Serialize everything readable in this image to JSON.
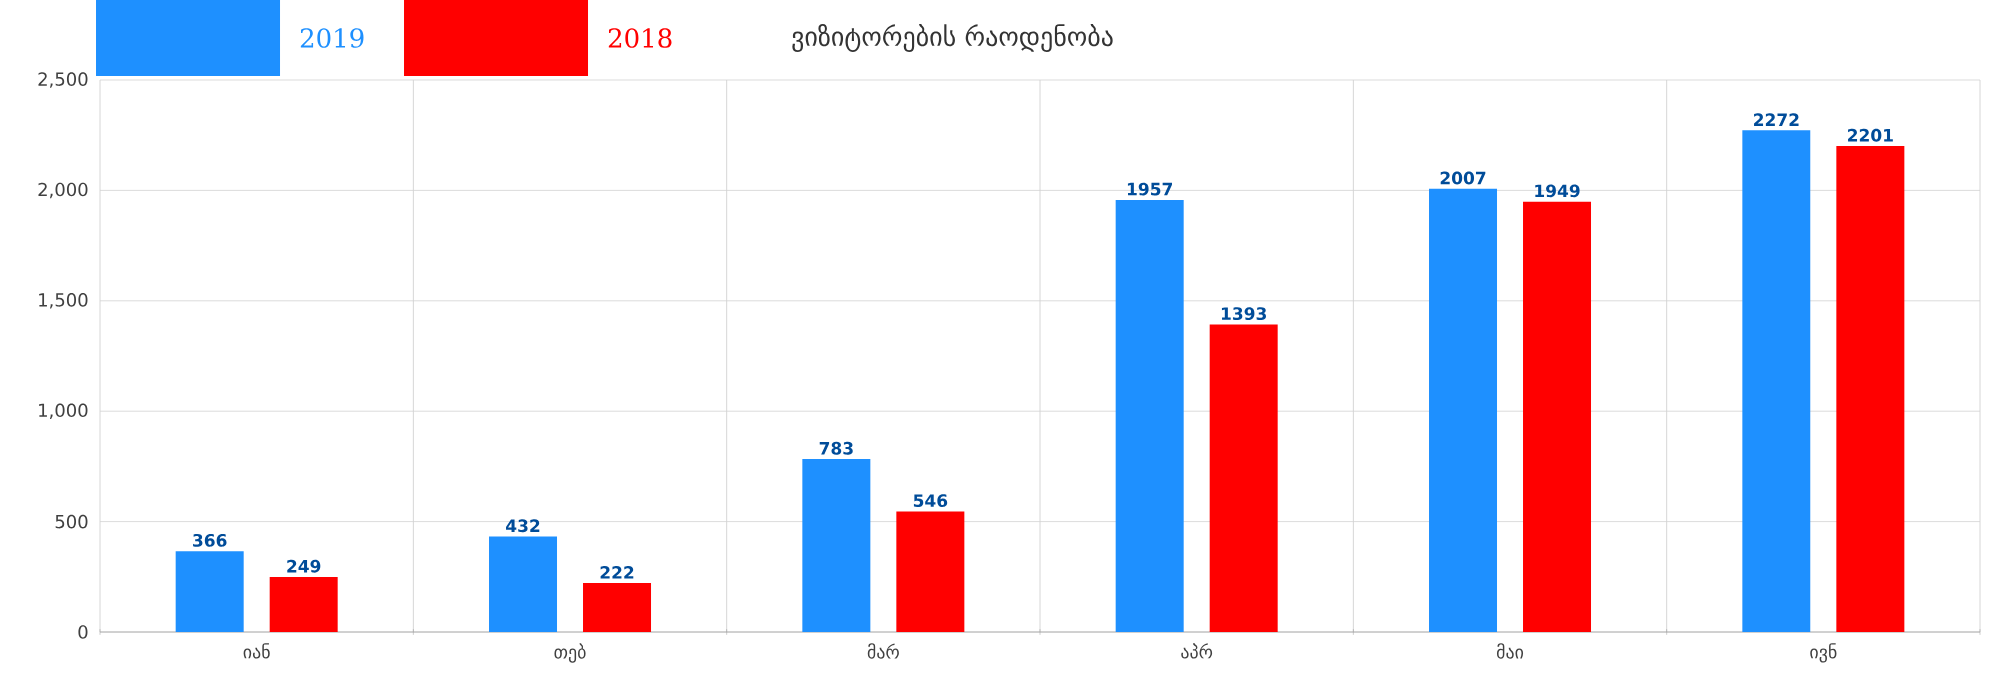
{
  "chart_data": {
    "type": "bar",
    "title": "ვიზიტორების რაოდენობა",
    "categories": [
      "იან",
      "თებ",
      "მარ",
      "აპრ",
      "მაი",
      "ივნ"
    ],
    "series": [
      {
        "name": "2019",
        "color": "#1e90ff",
        "values": [
          366,
          432,
          783,
          1957,
          2007,
          2272
        ]
      },
      {
        "name": "2018",
        "color": "#ff0000",
        "values": [
          249,
          222,
          546,
          1393,
          1949,
          2201
        ]
      }
    ],
    "ylim": [
      0,
      2500
    ],
    "yticks": [
      0,
      {
        "value": 500,
        "label": "500"
      },
      {
        "value": 1000,
        "label": "1,000"
      },
      {
        "value": 1500,
        "label": "1,500"
      },
      {
        "value": 2000,
        "label": "2,000"
      },
      {
        "value": 2500,
        "label": "2,500"
      }
    ],
    "grid": true,
    "legend": "top left",
    "data_labels": true
  }
}
